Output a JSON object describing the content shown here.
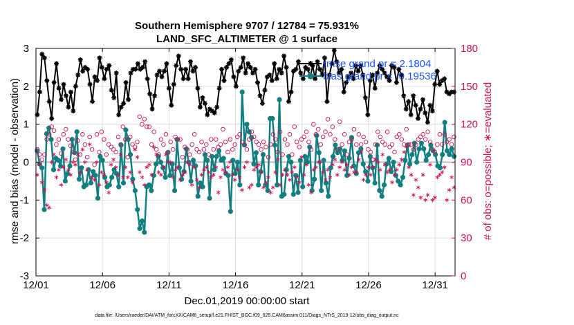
{
  "chart_data": {
    "type": "line",
    "title": "Southern Hemisphere 9707 / 12784 = 75.931%",
    "subtitle": "LAND_SFC_ALTIMETER @ 1 surface",
    "xlabel": "Dec.01,2019 00:00:00 start",
    "ylabel": "rmse and bias (model - observation)",
    "ylabel_right": "# of obs: o=possible; ∗=evaluated",
    "ylim": [
      -3,
      3
    ],
    "ylim_right": [
      0,
      180
    ],
    "xlim": [
      0,
      31.5
    ],
    "x_ticks": [
      0,
      5,
      10,
      15,
      20,
      25,
      30
    ],
    "x_tick_labels": [
      "12/01",
      "12/06",
      "12/11",
      "12/16",
      "12/21",
      "12/26",
      "12/31"
    ],
    "y_ticks": [
      -3,
      -2,
      -1,
      0,
      1,
      2,
      3
    ],
    "y_tick_labels": [
      "-3",
      "-2",
      "-1",
      "0",
      "1",
      "2",
      "3"
    ],
    "y_ticks_right": [
      0,
      30,
      60,
      90,
      120,
      150,
      180
    ],
    "y_tick_labels_right": [
      "0",
      "30",
      "60",
      "90",
      "120",
      "150",
      "180"
    ],
    "grid": true,
    "legend_position": "top-right",
    "series": [
      {
        "name": "rmse grand pr = 2.1804",
        "color": "#000000",
        "marker": "star",
        "axis": "left",
        "values": [
          1.25,
          1.85,
          2.85,
          2.75,
          2.15,
          1.6,
          1.15,
          2.1,
          2.6,
          1.95,
          1.65,
          2.05,
          1.75,
          1.45,
          1.85,
          1.35,
          2.0,
          2.3,
          2.7,
          2.4,
          2.5,
          2.45,
          2.05,
          1.6,
          2.25,
          2.15,
          2.75,
          2.5,
          2.2,
          2.45,
          2.55,
          1.9,
          1.7,
          2.35,
          1.25,
          1.45,
          1.55,
          2.1,
          1.65,
          2.35,
          2.45,
          2.45,
          2.6,
          2.45,
          2.5,
          2.65,
          2.2,
          1.8,
          1.4,
          1.75,
          2.3,
          2.4,
          2.25,
          2.4,
          2.6,
          1.95,
          1.5,
          2.05,
          2.55,
          2.8,
          2.45,
          2.2,
          2.45,
          2.2,
          2.65,
          2.4,
          2.5,
          1.95,
          1.45,
          1.7,
          1.55,
          1.25,
          1.4,
          1.35,
          1.3,
          1.45,
          1.95,
          2.45,
          2.15,
          2.5,
          2.6,
          2.7,
          2.25,
          2.0,
          2.4,
          2.5,
          2.75,
          2.35,
          2.6,
          2.5,
          2.35,
          2.45,
          2.1,
          1.75,
          1.55,
          1.9,
          2.25,
          2.3,
          2.15,
          2.6,
          2.2,
          2.45,
          2.35,
          2.8,
          2.5,
          1.6,
          1.85,
          2.4,
          2.45,
          2.65,
          2.35,
          2.2,
          2.5,
          2.45,
          2.25,
          2.55,
          2.2,
          2.65,
          2.45,
          2.3,
          2.75,
          1.6,
          2.3,
          2.6,
          2.95,
          2.65,
          2.35,
          2.45,
          1.85,
          2.1,
          2.25,
          2.35,
          2.2,
          2.55,
          2.4,
          2.55,
          2.3,
          1.7,
          1.25,
          2.15,
          2.3,
          1.95,
          2.35,
          2.55,
          2.45,
          2.35,
          2.25,
          2.15,
          2.55,
          2.5,
          2.1,
          2.45,
          2.3,
          1.75,
          1.4,
          1.6,
          1.25,
          1.75,
          1.5,
          1.15,
          1.4,
          1.65,
          1.3,
          1.05,
          1.5,
          1.35,
          2.05,
          2.4,
          2.05,
          2.15,
          2.2,
          1.85,
          1.8,
          1.85,
          1.85
        ]
      },
      {
        "name": "bias grand pr = -0.19536",
        "color": "#117f7f",
        "marker": "circle",
        "axis": "left",
        "values": [
          0.3,
          -0.05,
          -0.15,
          -1.25,
          0.75,
          0.9,
          0.6,
          -0.2,
          0.1,
          0.05,
          -0.1,
          0.35,
          -0.5,
          -0.3,
          -0.1,
          0.6,
          0.25,
          0.8,
          -0.45,
          -0.15,
          -0.65,
          -0.6,
          -0.2,
          -0.55,
          -0.25,
          -0.35,
          -0.95,
          0.15,
          0.05,
          -0.4,
          -0.65,
          -0.6,
          -0.4,
          -0.2,
          -0.3,
          -0.65,
          0.45,
          -0.55,
          0.85,
          0.6,
          0.2,
          -0.45,
          -0.75,
          -1.25,
          -1.75,
          -1.55,
          -1.85,
          -0.65,
          -0.6,
          -0.75,
          -0.35,
          -0.05,
          0.15,
          0.0,
          -0.15,
          -0.4,
          0.25,
          -0.35,
          -0.05,
          -0.75,
          0.6,
          -0.15,
          -0.45,
          -0.25,
          0.35,
          0.0,
          -0.5,
          0.05,
          -0.1,
          -0.9,
          -0.55,
          -0.65,
          0.2,
          0.05,
          -0.95,
          0.15,
          -0.2,
          0.15,
          0.3,
          0.05,
          0.1,
          -0.3,
          -0.35,
          -1.3,
          0.05,
          -0.3,
          0.0,
          -0.6,
          1.85,
          0.45,
          1.0,
          0.8,
          0.65,
          -0.05,
          0.25,
          -0.6,
          -0.25,
          0.2,
          -0.6,
          -0.75,
          1.15,
          1.15,
          0.45,
          -0.6,
          1.65,
          -0.9,
          -0.85,
          -0.2,
          0.15,
          0.0,
          -0.85,
          -0.35,
          -0.8,
          0.05,
          -0.65,
          0.15,
          0.0,
          0.4,
          -0.75,
          -0.45,
          0.7,
          0.25,
          -0.75,
          0.05,
          -0.55,
          -0.9,
          -0.15,
          0.15,
          0.45,
          0.25,
          0.35,
          0.05,
          0.3,
          -0.35,
          0.1,
          0.65,
          -0.1,
          -0.3,
          0.25,
          0.35,
          -0.05,
          -0.25,
          -0.5,
          0.15,
          -0.15,
          -0.55,
          0.45,
          -0.75,
          -0.9,
          -0.6,
          -0.05,
          0.1,
          -0.25,
          0.0,
          -0.35,
          -0.5,
          -0.6,
          -0.4,
          0.05,
          0.45,
          -0.05,
          0.2,
          0.5,
          0.0,
          0.35,
          0.5,
          0.35,
          0.05,
          0.2,
          0.45,
          0.3,
          0.2,
          -0.1,
          -0.15,
          0.2,
          1.05,
          0.3,
          0.2,
          0.35,
          0.15
        ]
      },
      {
        "name": "possible",
        "color": "#cc1155",
        "marker": "open-circle",
        "axis": "right",
        "values": [
          100,
          96,
          92,
          96,
          108,
          112,
          118,
          115,
          104,
          108,
          97,
          112,
          116,
          108,
          103,
          98,
          92,
          107,
          96,
          112,
          104,
          94,
          110,
          100,
          88,
          112,
          98,
          114,
          108,
          96,
          104,
          102,
          100,
          98,
          110,
          104,
          118,
          108,
          94,
          110,
          104,
          102,
          106,
          126,
          120,
          124,
          118,
          118,
          104,
          114,
          100,
          96,
          108,
          104,
          112,
          98,
          106,
          100,
          110,
          108,
          108,
          94,
          102,
          100,
          96,
          104,
          112,
          100,
          98,
          106,
          100,
          104,
          96,
          108,
          100,
          108,
          102,
          104,
          116,
          106,
          98,
          108,
          100,
          104,
          110,
          112,
          106,
          104,
          100,
          108,
          114,
          110,
          106,
          104,
          100,
          106,
          102,
          94,
          104,
          112,
          108,
          98,
          114,
          96,
          108,
          104,
          112,
          96,
          118,
          106,
          102,
          108,
          110,
          114,
          106,
          100,
          120,
          112,
          116,
          104,
          110,
          114,
          124,
          112,
          118,
          108,
          100,
          122,
          104,
          112,
          96,
          106,
          108,
          116,
          104,
          112,
          104,
          110,
          106,
          100,
          98,
          92,
          104,
          114,
          110,
          106,
          104,
          114,
          102,
          104,
          98,
          110,
          112,
          108,
          104,
          116,
          104,
          104,
          100,
          104,
          108,
          110,
          112,
          108,
          114,
          106,
          100,
          98,
          104,
          112,
          104,
          112,
          106,
          108,
          104,
          110
        ]
      },
      {
        "name": "evaluated",
        "color": "#cc1155",
        "marker": "asterisk",
        "axis": "right",
        "values": [
          80,
          88,
          74,
          68,
          56,
          54,
          90,
          96,
          78,
          84,
          72,
          86,
          92,
          84,
          80,
          90,
          88,
          96,
          82,
          100,
          90,
          84,
          104,
          78,
          76,
          90,
          72,
          82,
          80,
          74,
          66,
          88,
          92,
          86,
          80,
          96,
          78,
          86,
          78,
          82,
          74,
          100,
          94,
          82,
          78,
          72,
          86,
          88,
          80,
          102,
          96,
          82,
          80,
          86,
          96,
          90,
          90,
          78,
          84,
          86,
          76,
          80,
          82,
          90,
          88,
          72,
          86,
          76,
          70,
          80,
          84,
          86,
          82,
          78,
          80,
          86,
          66,
          78,
          84,
          82,
          86,
          90,
          80,
          76,
          84,
          78,
          68,
          86,
          90,
          70,
          72,
          84,
          86,
          88,
          82,
          70,
          74,
          78,
          66,
          70,
          82,
          92,
          72,
          80,
          84,
          80,
          76,
          82,
          86,
          78,
          74,
          94,
          80,
          88,
          72,
          66,
          84,
          86,
          90,
          90,
          82,
          76,
          84,
          78,
          88,
          92,
          80,
          86,
          90,
          84,
          88,
          80,
          86,
          82,
          82,
          92,
          98,
          76,
          80,
          86,
          80,
          86,
          92,
          90,
          84,
          96,
          88,
          82,
          84,
          74,
          80,
          84,
          88,
          92,
          98,
          102,
          86,
          80,
          64,
          76,
          70,
          62,
          80,
          60,
          64,
          88,
          60,
          62,
          78,
          80,
          82,
          86,
          60,
          68,
          78,
          70
        ]
      }
    ]
  },
  "legend": {
    "rmse_label": "rmse grand pr = 2.1804",
    "bias_label": "bias grand pr = -0.19536"
  },
  "footer": {
    "data_file": "data file: /Users/raeder/DAI/ATM_forcXX/CAM6_setup/f.e21.FHIST_BGC.f09_025.CAM6assim.011/Diags_NTrS_2019-12/obs_diag_output.nc"
  },
  "colors": {
    "rmse": "#000000",
    "bias": "#117f7f",
    "obs": "#cc1155",
    "legend_text": "#1a53ff",
    "grid": "#dedede"
  }
}
